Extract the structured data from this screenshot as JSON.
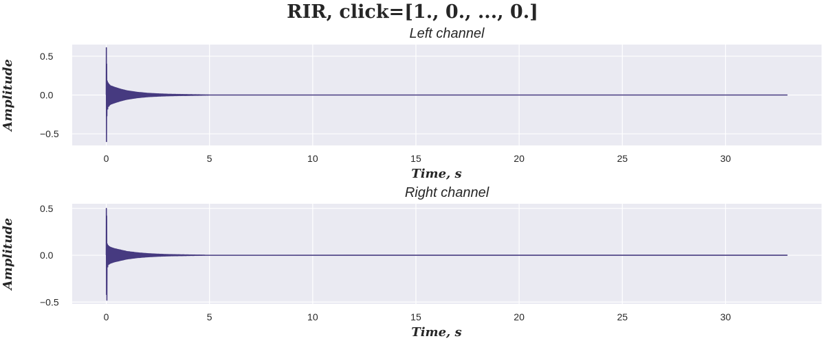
{
  "figure": {
    "suptitle": "RIR, click=[1., 0., ..., 0.]"
  },
  "chart_data": [
    {
      "type": "line",
      "title": "Left channel",
      "xlabel": "Time, s",
      "ylabel": "Amplitude",
      "xlim": [
        -1.65,
        34.65
      ],
      "ylim": [
        -0.65,
        0.65
      ],
      "xticks": [
        0,
        5,
        10,
        15,
        20,
        25,
        30
      ],
      "xtick_labels": [
        "0",
        "5",
        "10",
        "15",
        "20",
        "25",
        "30"
      ],
      "yticks": [
        0.5,
        0.0,
        -0.5
      ],
      "ytick_labels": [
        "0.5",
        "0.0",
        "−0.5"
      ],
      "grid": true,
      "color": "#463a80",
      "signal": {
        "duration_s": 33,
        "peak_max": 0.61,
        "peak_min": -0.6,
        "decay_end_s": 4.5
      },
      "envelope": {
        "t": [
          0,
          0.02,
          0.05,
          0.1,
          0.2,
          0.4,
          0.7,
          1.0,
          1.5,
          2.0,
          2.5,
          3.0,
          3.5,
          4.0,
          4.5,
          5.0,
          33.0
        ],
        "upper": [
          0.61,
          0.4,
          0.18,
          0.15,
          0.12,
          0.1,
          0.075,
          0.055,
          0.035,
          0.022,
          0.015,
          0.01,
          0.007,
          0.005,
          0.003,
          0.0,
          0.0
        ],
        "lower": [
          -0.6,
          -0.27,
          -0.2,
          -0.15,
          -0.12,
          -0.1,
          -0.075,
          -0.055,
          -0.035,
          -0.022,
          -0.015,
          -0.01,
          -0.007,
          -0.005,
          -0.003,
          0.0,
          0.0
        ]
      }
    },
    {
      "type": "line",
      "title": "Right channel",
      "xlabel": "Time, s",
      "ylabel": "Amplitude",
      "xlim": [
        -1.65,
        34.65
      ],
      "ylim": [
        -0.52,
        0.55
      ],
      "xticks": [
        0,
        5,
        10,
        15,
        20,
        25,
        30
      ],
      "xtick_labels": [
        "0",
        "5",
        "10",
        "15",
        "20",
        "25",
        "30"
      ],
      "yticks": [
        0.5,
        0.0,
        -0.5
      ],
      "ytick_labels": [
        "0.5",
        "0.0",
        "−0.5"
      ],
      "grid": true,
      "color": "#463a80",
      "signal": {
        "duration_s": 33,
        "peak_max": 0.5,
        "peak_min": -0.48,
        "decay_end_s": 4.3
      },
      "envelope": {
        "t": [
          0,
          0.02,
          0.05,
          0.1,
          0.2,
          0.4,
          0.7,
          1.0,
          1.5,
          2.0,
          2.5,
          3.0,
          3.5,
          4.0,
          4.3,
          5.0,
          33.0
        ],
        "upper": [
          0.5,
          0.42,
          0.12,
          0.1,
          0.085,
          0.07,
          0.055,
          0.04,
          0.026,
          0.017,
          0.011,
          0.007,
          0.005,
          0.003,
          0.002,
          0.0,
          0.0
        ],
        "lower": [
          -0.42,
          -0.48,
          -0.14,
          -0.1,
          -0.085,
          -0.07,
          -0.055,
          -0.04,
          -0.026,
          -0.017,
          -0.011,
          -0.007,
          -0.005,
          -0.003,
          -0.002,
          0.0,
          0.0
        ]
      }
    }
  ]
}
